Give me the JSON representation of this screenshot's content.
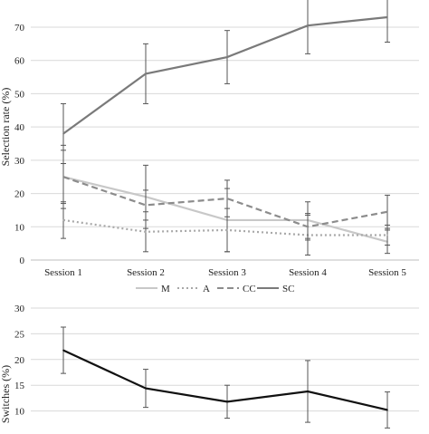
{
  "chart_data": [
    {
      "type": "line",
      "ylabel": "Selection rate (%)",
      "ylim": [
        0,
        70
      ],
      "yticks": [
        0,
        10,
        20,
        30,
        40,
        50,
        60,
        70
      ],
      "categories": [
        "Session 1",
        "Session 2",
        "Session 3",
        "Session 4",
        "Session 5"
      ],
      "grid": true,
      "legend": "bottom",
      "series": [
        {
          "name": "M",
          "style": "solid",
          "color": "#c8c8c8",
          "values": [
            25,
            19,
            12,
            12,
            5.5
          ],
          "errors": [
            8,
            9.5,
            9.5,
            5.5,
            3.5
          ]
        },
        {
          "name": "A",
          "style": "dotted",
          "color": "#a8a8a8",
          "values": [
            12,
            8.5,
            9,
            7.5,
            7.5
          ],
          "errors": [
            5.5,
            6,
            6.5,
            6,
            3
          ]
        },
        {
          "name": "CC",
          "style": "dashed",
          "color": "#8c8c8c",
          "values": [
            25,
            16.5,
            18.5,
            10,
            14.5
          ],
          "errors": [
            9.5,
            4.5,
            5.5,
            4,
            5
          ]
        },
        {
          "name": "SC",
          "style": "solid",
          "color": "#7a7a7a",
          "values": [
            38,
            56,
            61,
            70.5,
            73
          ],
          "errors": [
            9,
            9,
            8,
            8.5,
            7.5
          ]
        }
      ]
    },
    {
      "type": "line",
      "ylabel": "Switches (%)",
      "ylim": [
        5,
        30
      ],
      "yticks": [
        5,
        10,
        15,
        20,
        25,
        30
      ],
      "categories": [
        "Session 1",
        "Session 2",
        "Session 3",
        "Session 4",
        "Session 5"
      ],
      "grid": true,
      "series": [
        {
          "name": "",
          "style": "solid",
          "color": "#111111",
          "values": [
            21.8,
            14.4,
            11.8,
            13.8,
            10.2
          ],
          "errors": [
            4.5,
            3.7,
            3.2,
            6,
            3.5
          ]
        }
      ]
    }
  ]
}
